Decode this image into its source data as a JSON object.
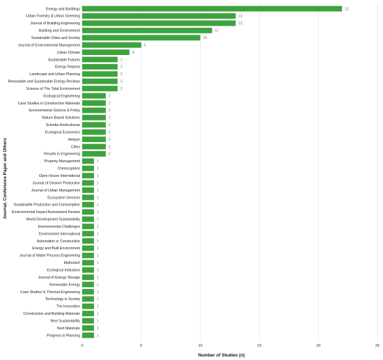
{
  "chart_data": {
    "type": "bar",
    "orientation": "horizontal",
    "xlabel": "Number of Studies (n)",
    "ylabel": "Journal, Conference Paper and Others",
    "xlim": [
      0,
      25
    ],
    "xticks": [
      "0",
      "5",
      "10",
      "15",
      "20",
      "25"
    ],
    "grid": "vertical",
    "bar_color": "#3ea33e",
    "categories": [
      "Energy and Buildings",
      "Urban Forestry & Urban Greening",
      "Journal of Building Engineering",
      "Building and Environment",
      "Sustainable Cities and Society",
      "Journal of Environmental Management",
      "Urban Climate",
      "Sustainable Futures",
      "Energy Reports",
      "Landscape and Urban Planning",
      "Renewable and Sustainable Energy Reviews",
      "Science of The Total Environment",
      "Ecological Engineering",
      "Case Studies in Construction Materials",
      "Environmental Science & Policy",
      "Nature-Based Solutions",
      "Scientia Horticulturae",
      "Ecological Economics",
      "Heliyon",
      "Cities",
      "Results in Engineering",
      "Property Management",
      "Chemosphere",
      "Open House International",
      "Journal of Cleaner Production",
      "Journal of Urban Management",
      "Ecosystem Services",
      "Sustainable Production and Consumption",
      "Environmental Impact Assessment Review",
      "World Development Sustainability",
      "Environmental Challenges",
      "Environment International",
      "Automation in Construction",
      "Energy and Built Environment",
      "Journal of Water Process Engineering",
      "MethodsX",
      "Ecological Indicators",
      "Journal of Energy Storage",
      "Renewable Energy",
      "Case Studies in Thermal Engineering",
      "Technology in Society",
      "The Innovation",
      "Construction and Building Materials",
      "Next Sustainability",
      "Next Materials",
      "Progress in Planning"
    ],
    "values": [
      22,
      13,
      13,
      11,
      10,
      5,
      4,
      3,
      3,
      3,
      3,
      3,
      2,
      2,
      2,
      2,
      2,
      2,
      2,
      2,
      2,
      1,
      1,
      1,
      1,
      1,
      1,
      1,
      1,
      1,
      1,
      1,
      1,
      1,
      1,
      1,
      1,
      1,
      1,
      1,
      1,
      1,
      1,
      1,
      1,
      1
    ]
  }
}
